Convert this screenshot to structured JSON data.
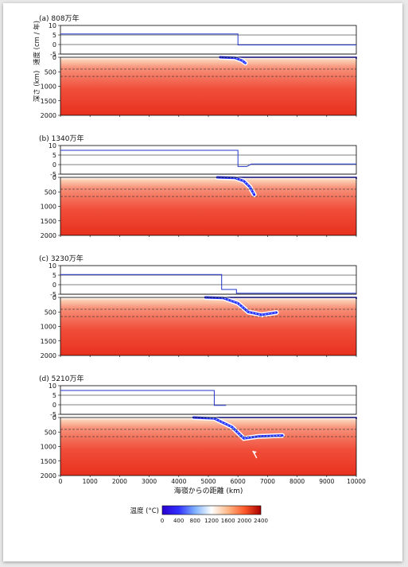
{
  "chart_data": {
    "type": "heatmap",
    "panels": [
      {
        "label": "(a) 808万年",
        "velocity": [
          [
            0,
            5.5
          ],
          [
            6000,
            5.5
          ],
          [
            6000,
            -0.2
          ],
          [
            10000,
            -0.2
          ]
        ],
        "slab": [
          [
            5400,
            0
          ],
          [
            5900,
            20
          ],
          [
            6150,
            120
          ],
          [
            6250,
            200
          ]
        ]
      },
      {
        "label": "(b) 1340万年",
        "velocity": [
          [
            0,
            7.5
          ],
          [
            6000,
            7.5
          ],
          [
            6000,
            -1.0
          ],
          [
            6300,
            -1.0
          ],
          [
            6450,
            0.3
          ],
          [
            10000,
            0.3
          ]
        ],
        "slab": [
          [
            5300,
            0
          ],
          [
            5900,
            20
          ],
          [
            6200,
            130
          ],
          [
            6400,
            330
          ],
          [
            6550,
            600
          ]
        ]
      },
      {
        "label": "(c) 3230万年",
        "velocity": [
          [
            0,
            5.3
          ],
          [
            5450,
            5.3
          ],
          [
            5450,
            -2.5
          ],
          [
            5950,
            -2.5
          ],
          [
            5950,
            -4.5
          ],
          [
            10000,
            -4.5
          ]
        ],
        "slab": [
          [
            4900,
            0
          ],
          [
            5500,
            20
          ],
          [
            6000,
            200
          ],
          [
            6350,
            500
          ],
          [
            6800,
            600
          ],
          [
            7300,
            520
          ]
        ]
      },
      {
        "label": "(d) 5210万年",
        "velocity": [
          [
            0,
            7.5
          ],
          [
            5200,
            7.5
          ],
          [
            5200,
            -0.3
          ],
          [
            5600,
            -0.3
          ]
        ],
        "slab": [
          [
            4500,
            0
          ],
          [
            5200,
            30
          ],
          [
            5800,
            330
          ],
          [
            6200,
            720
          ],
          [
            6700,
            650
          ],
          [
            7500,
            620
          ]
        ],
        "arrow": [
          6500,
          1150
        ]
      }
    ],
    "velocity_axis": {
      "label": "速度 (cm / 年)",
      "ylim": [
        -5,
        10
      ],
      "ticks": [
        -5,
        0,
        5,
        10
      ],
      "reference_lines": [
        -5,
        0,
        5
      ]
    },
    "depth_axis": {
      "label": "深さ (km)",
      "ylim": [
        2000,
        0
      ],
      "ticks": [
        0,
        500,
        1000,
        1500,
        2000
      ],
      "dashed_lines": [
        410,
        660
      ]
    },
    "x_axis": {
      "label": "海嶺からの距離 (km)",
      "xlim": [
        0,
        10000
      ],
      "ticks": [
        0,
        1000,
        2000,
        3000,
        4000,
        5000,
        6000,
        7000,
        8000,
        9000,
        10000
      ]
    },
    "colorbar": {
      "label": "温度 (°C)",
      "ticks": [
        0,
        400,
        800,
        1200,
        1600,
        2000,
        2400
      ],
      "range": [
        0,
        2400
      ],
      "stops": [
        "#2a00d0",
        "#3030ff",
        "#7fb2ff",
        "#ffffff",
        "#ffb888",
        "#ff5a2a",
        "#a80000"
      ]
    }
  }
}
